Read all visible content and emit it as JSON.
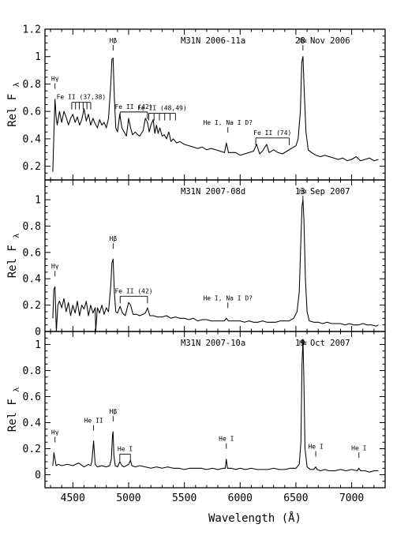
{
  "chart_data": {
    "type": "line",
    "xlabel": "Wavelength (Å)",
    "ylabel": "Rel F",
    "ylabel_subscript": "λ",
    "xlim": [
      4250,
      7300
    ],
    "xticks": [
      4500,
      5000,
      5500,
      6000,
      6500,
      7000
    ],
    "panels": [
      {
        "name": "M31N 2006-11a",
        "date": "28 Nov 2006",
        "ylim": [
          0.1,
          1.2
        ],
        "yticks": [
          0.2,
          0.4,
          0.6,
          0.8,
          1,
          1.2
        ],
        "x": [
          4320,
          4330,
          4340,
          4350,
          4360,
          4380,
          4400,
          4420,
          4440,
          4460,
          4480,
          4500,
          4520,
          4540,
          4560,
          4580,
          4600,
          4620,
          4640,
          4660,
          4680,
          4700,
          4720,
          4740,
          4760,
          4780,
          4800,
          4820,
          4840,
          4850,
          4861,
          4872,
          4885,
          4900,
          4920,
          4940,
          4960,
          4980,
          5000,
          5018,
          5035,
          5060,
          5080,
          5100,
          5130,
          5150,
          5169,
          5185,
          5200,
          5220,
          5235,
          5250,
          5265,
          5280,
          5300,
          5320,
          5340,
          5360,
          5380,
          5400,
          5430,
          5460,
          5500,
          5540,
          5580,
          5620,
          5660,
          5700,
          5740,
          5780,
          5820,
          5860,
          5876,
          5895,
          5920,
          5960,
          6000,
          6040,
          6080,
          6120,
          6148,
          6175,
          6200,
          6238,
          6260,
          6300,
          6340,
          6380,
          6420,
          6460,
          6500,
          6520,
          6540,
          6553,
          6563,
          6575,
          6590,
          6610,
          6640,
          6680,
          6720,
          6760,
          6800,
          6840,
          6880,
          6920,
          6960,
          7000,
          7040,
          7080,
          7120,
          7160,
          7200,
          7240
        ],
        "y": [
          0.16,
          0.44,
          0.69,
          0.56,
          0.5,
          0.6,
          0.52,
          0.6,
          0.56,
          0.5,
          0.55,
          0.58,
          0.52,
          0.56,
          0.5,
          0.54,
          0.62,
          0.53,
          0.58,
          0.5,
          0.55,
          0.51,
          0.48,
          0.54,
          0.5,
          0.52,
          0.48,
          0.55,
          0.8,
          0.98,
          0.99,
          0.7,
          0.48,
          0.45,
          0.58,
          0.48,
          0.45,
          0.42,
          0.55,
          0.48,
          0.43,
          0.45,
          0.43,
          0.42,
          0.46,
          0.55,
          0.52,
          0.45,
          0.5,
          0.54,
          0.44,
          0.5,
          0.44,
          0.48,
          0.42,
          0.43,
          0.4,
          0.45,
          0.38,
          0.4,
          0.37,
          0.38,
          0.36,
          0.35,
          0.34,
          0.33,
          0.34,
          0.32,
          0.33,
          0.32,
          0.31,
          0.3,
          0.37,
          0.3,
          0.3,
          0.3,
          0.28,
          0.29,
          0.3,
          0.31,
          0.36,
          0.29,
          0.31,
          0.36,
          0.3,
          0.32,
          0.3,
          0.29,
          0.31,
          0.33,
          0.35,
          0.4,
          0.6,
          0.96,
          1.0,
          0.75,
          0.45,
          0.32,
          0.3,
          0.28,
          0.27,
          0.28,
          0.27,
          0.26,
          0.25,
          0.26,
          0.24,
          0.25,
          0.27,
          0.24,
          0.25,
          0.26,
          0.24,
          0.25
        ],
        "annotations": [
          {
            "label": "Hγ",
            "x": 4340
          },
          {
            "label": "Fe II (37,38)",
            "x_start": 4490,
            "x_end": 4660
          },
          {
            "label": "Hβ",
            "x": 4861
          },
          {
            "label": "Fe II (42)",
            "x_start": 4924,
            "x_end": 5169
          },
          {
            "label": "Fe II (48,49)",
            "x_start": 5180,
            "x_end": 5420
          },
          {
            "label": "He I, Na I D?",
            "x": 5890
          },
          {
            "label": "Fe II (74)",
            "x_start": 6140,
            "x_end": 6440
          },
          {
            "label": "Hα",
            "x": 6563
          }
        ]
      },
      {
        "name": "M31N 2007-08d",
        "date": "13 Sep 2007",
        "ylim": [
          0,
          1.15
        ],
        "yticks": [
          0,
          0.2,
          0.4,
          0.6,
          0.8,
          1
        ],
        "x": [
          4320,
          4330,
          4340,
          4346,
          4352,
          4365,
          4380,
          4400,
          4420,
          4440,
          4460,
          4480,
          4500,
          4520,
          4540,
          4560,
          4580,
          4600,
          4620,
          4640,
          4660,
          4680,
          4700,
          4705,
          4720,
          4740,
          4760,
          4780,
          4800,
          4820,
          4840,
          4850,
          4861,
          4872,
          4885,
          4900,
          4924,
          4945,
          4970,
          5000,
          5018,
          5040,
          5070,
          5100,
          5130,
          5150,
          5169,
          5190,
          5220,
          5260,
          5300,
          5340,
          5380,
          5420,
          5460,
          5500,
          5540,
          5580,
          5620,
          5660,
          5700,
          5740,
          5780,
          5820,
          5860,
          5876,
          5895,
          5920,
          5960,
          6000,
          6040,
          6080,
          6120,
          6160,
          6200,
          6240,
          6280,
          6320,
          6360,
          6400,
          6440,
          6480,
          6510,
          6530,
          6545,
          6555,
          6563,
          6572,
          6585,
          6600,
          6620,
          6660,
          6700,
          6740,
          6780,
          6820,
          6860,
          6900,
          6940,
          6980,
          7020,
          7060,
          7100,
          7140,
          7180,
          7220,
          7240
        ],
        "y": [
          0.1,
          0.32,
          0.34,
          0.15,
          0.0,
          0.2,
          0.23,
          0.18,
          0.25,
          0.15,
          0.22,
          0.12,
          0.2,
          0.14,
          0.23,
          0.12,
          0.2,
          0.17,
          0.23,
          0.12,
          0.2,
          0.14,
          0.18,
          0.0,
          0.18,
          0.14,
          0.2,
          0.13,
          0.18,
          0.15,
          0.35,
          0.52,
          0.55,
          0.3,
          0.15,
          0.14,
          0.19,
          0.14,
          0.12,
          0.22,
          0.2,
          0.13,
          0.13,
          0.12,
          0.13,
          0.14,
          0.18,
          0.12,
          0.12,
          0.11,
          0.11,
          0.12,
          0.1,
          0.11,
          0.1,
          0.1,
          0.09,
          0.1,
          0.08,
          0.09,
          0.09,
          0.08,
          0.08,
          0.08,
          0.08,
          0.1,
          0.08,
          0.08,
          0.08,
          0.08,
          0.07,
          0.08,
          0.07,
          0.07,
          0.08,
          0.07,
          0.07,
          0.07,
          0.08,
          0.08,
          0.08,
          0.1,
          0.15,
          0.3,
          0.7,
          0.95,
          1.0,
          0.85,
          0.4,
          0.15,
          0.08,
          0.07,
          0.07,
          0.06,
          0.07,
          0.06,
          0.06,
          0.06,
          0.05,
          0.06,
          0.05,
          0.05,
          0.06,
          0.05,
          0.05,
          0.04,
          0.05
        ],
        "annotations": [
          {
            "label": "Hγ",
            "x": 4340
          },
          {
            "label": "Hβ",
            "x": 4861
          },
          {
            "label": "Fe II (42)",
            "x_start": 4924,
            "x_end": 5169
          },
          {
            "label": "He I, Na I D?",
            "x": 5890
          },
          {
            "label": "Hα",
            "x": 6563
          }
        ]
      },
      {
        "name": "M31N 2007-10a",
        "date": "19 Oct 2007",
        "ylim": [
          -0.1,
          1.1
        ],
        "yticks": [
          0,
          0.2,
          0.4,
          0.6,
          0.8,
          1
        ],
        "x": [
          4320,
          4330,
          4340,
          4350,
          4370,
          4400,
          4450,
          4500,
          4550,
          4600,
          4640,
          4660,
          4670,
          4686,
          4700,
          4720,
          4760,
          4800,
          4830,
          4845,
          4855,
          4861,
          4868,
          4880,
          4900,
          4921,
          4940,
          4960,
          5000,
          5016,
          5030,
          5060,
          5100,
          5150,
          5200,
          5250,
          5300,
          5350,
          5400,
          5450,
          5500,
          5550,
          5600,
          5650,
          5700,
          5750,
          5800,
          5850,
          5866,
          5876,
          5886,
          5920,
          5960,
          6000,
          6050,
          6100,
          6150,
          6200,
          6250,
          6300,
          6350,
          6400,
          6450,
          6500,
          6530,
          6545,
          6555,
          6563,
          6571,
          6582,
          6600,
          6630,
          6660,
          6678,
          6690,
          6720,
          6760,
          6800,
          6850,
          6900,
          6950,
          7000,
          7050,
          7065,
          7080,
          7120,
          7160,
          7200,
          7240
        ],
        "y": [
          0.07,
          0.17,
          0.12,
          0.07,
          0.08,
          0.07,
          0.08,
          0.07,
          0.09,
          0.06,
          0.08,
          0.07,
          0.1,
          0.26,
          0.08,
          0.06,
          0.07,
          0.06,
          0.07,
          0.12,
          0.3,
          0.33,
          0.15,
          0.07,
          0.06,
          0.1,
          0.07,
          0.06,
          0.08,
          0.11,
          0.07,
          0.06,
          0.07,
          0.06,
          0.05,
          0.06,
          0.05,
          0.06,
          0.05,
          0.05,
          0.04,
          0.05,
          0.05,
          0.05,
          0.04,
          0.05,
          0.04,
          0.05,
          0.05,
          0.12,
          0.05,
          0.05,
          0.04,
          0.05,
          0.04,
          0.05,
          0.04,
          0.04,
          0.04,
          0.05,
          0.04,
          0.04,
          0.05,
          0.05,
          0.08,
          0.25,
          0.85,
          1.04,
          0.75,
          0.2,
          0.06,
          0.04,
          0.04,
          0.06,
          0.04,
          0.03,
          0.04,
          0.03,
          0.03,
          0.04,
          0.03,
          0.04,
          0.03,
          0.05,
          0.03,
          0.03,
          0.02,
          0.03,
          0.03
        ],
        "annotations": [
          {
            "label": "Hγ",
            "x": 4340
          },
          {
            "label": "He II",
            "x": 4686
          },
          {
            "label": "Hβ",
            "x": 4861
          },
          {
            "label": "He I",
            "x_start": 4921,
            "x_end": 5016
          },
          {
            "label": "He I",
            "x": 5876
          },
          {
            "label": "Hα",
            "x": 6563
          },
          {
            "label": "He I",
            "x": 6678
          },
          {
            "label": "He I",
            "x": 7065
          }
        ]
      }
    ]
  }
}
